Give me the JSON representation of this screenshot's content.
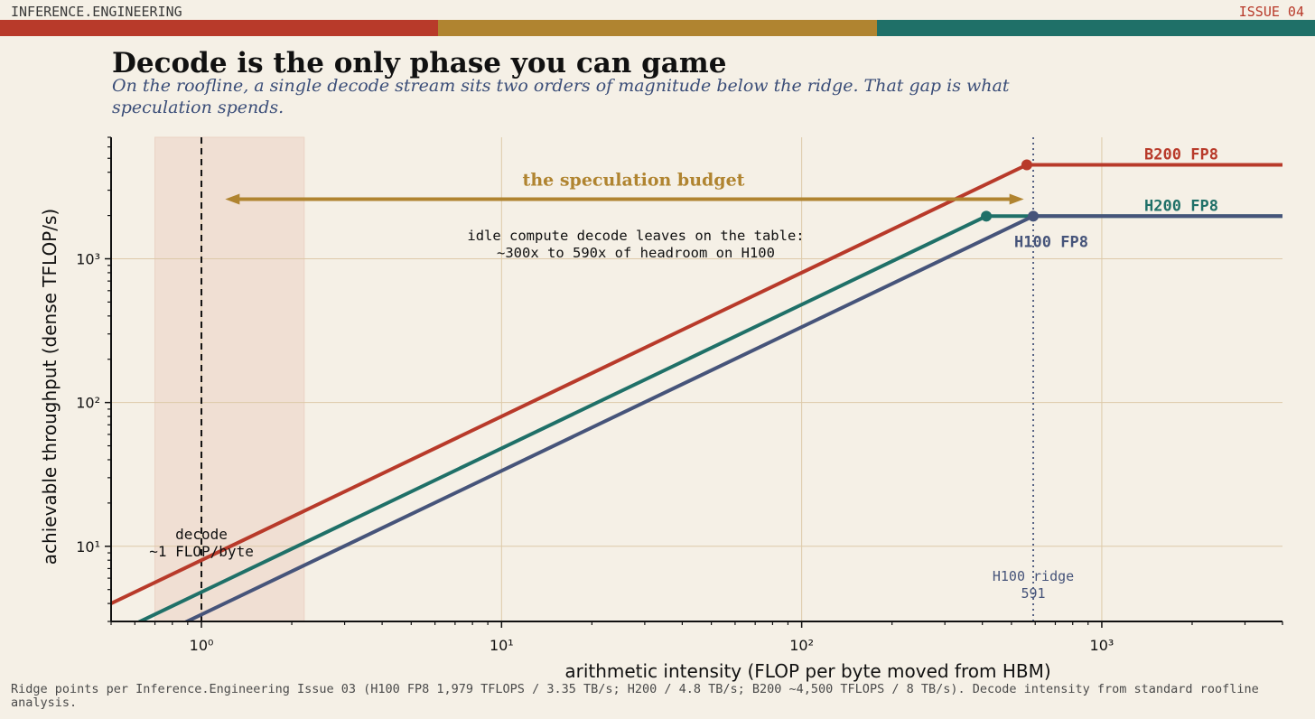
{
  "masthead": {
    "brand": "INFERENCE.ENGINEERING",
    "issue": "ISSUE 04"
  },
  "colors": {
    "background": "#f5f0e6",
    "red": "#b83a2a",
    "gold": "#b08430",
    "teal": "#1f7068",
    "slate": "#46547a",
    "grid": "#ddc9a8"
  },
  "title": "Decode is the only phase you can game",
  "subtitle": "On the roofline, a single decode stream sits two orders of magnitude below the ridge. That gap is what speculation spends.",
  "footnote": "Ridge points per Inference.Engineering Issue 03 (H100 FP8 1,979 TFLOPS / 3.35 TB/s; H200 / 4.8 TB/s; B200 ~4,500 TFLOPS / 8 TB/s). Decode intensity from standard roofline analysis.",
  "chart_data": {
    "type": "line",
    "x_scale": "log",
    "y_scale": "log",
    "xlabel": "arithmetic intensity  (FLOP per byte moved from HBM)",
    "ylabel": "achievable throughput  (dense TFLOP/s)",
    "xlim": [
      0.5,
      4000
    ],
    "ylim": [
      3,
      7000
    ],
    "x_ticks": [
      {
        "value": 1,
        "label": "10⁰"
      },
      {
        "value": 10,
        "label": "10¹"
      },
      {
        "value": 100,
        "label": "10²"
      },
      {
        "value": 1000,
        "label": "10³"
      }
    ],
    "y_ticks": [
      {
        "value": 10,
        "label": "10¹"
      },
      {
        "value": 100,
        "label": "10²"
      },
      {
        "value": 1000,
        "label": "10³"
      }
    ],
    "grid": true,
    "series": [
      {
        "name": "B200  FP8",
        "color": "#b83a2a",
        "bandwidth_tb_s": 8,
        "peak_tflops": 4500,
        "ridge": 562.5
      },
      {
        "name": "H200  FP8",
        "color": "#1f7068",
        "bandwidth_tb_s": 4.8,
        "peak_tflops": 1979,
        "ridge": 412.3
      },
      {
        "name": "H100  FP8",
        "color": "#46547a",
        "bandwidth_tb_s": 3.35,
        "peak_tflops": 1979,
        "ridge": 591
      }
    ],
    "decode_band": [
      0.7,
      2.2
    ],
    "decode_line": 1,
    "decode_label": "decode\n~1 FLOP/byte",
    "ridge_line": 591,
    "ridge_label": "H100 ridge\n591",
    "budget_arrow": {
      "from": 1.2,
      "to": 550,
      "y": 2600
    },
    "annotations": {
      "budget_label": "the speculation budget",
      "idle_text": "idle compute decode leaves on the table:\n~300x to 590x of headroom on H100"
    }
  }
}
